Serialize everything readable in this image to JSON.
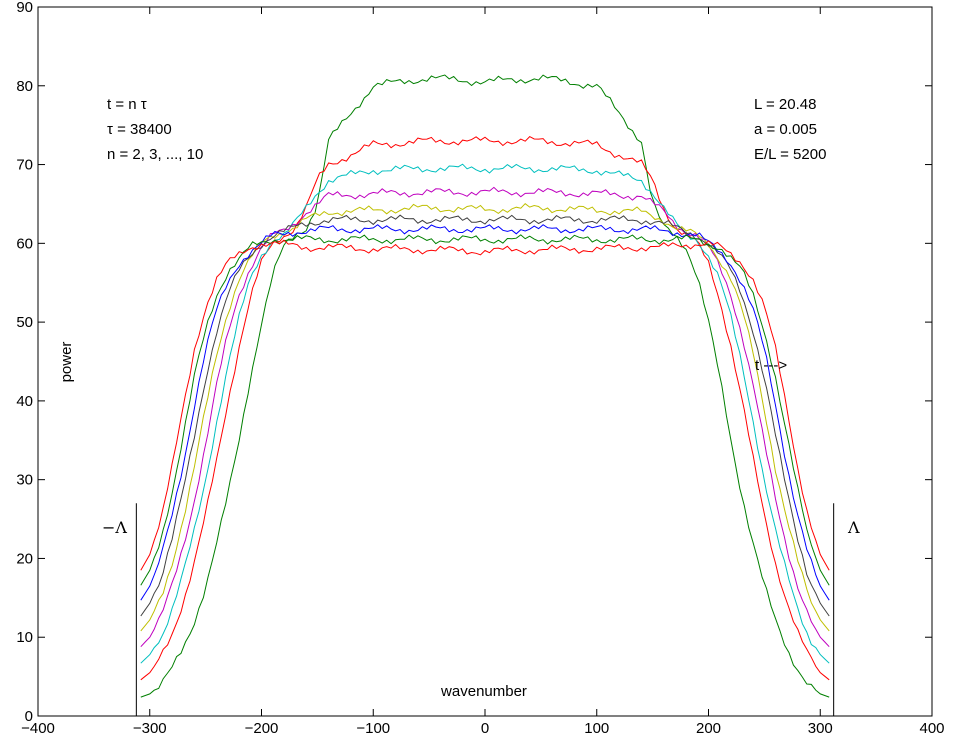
{
  "chart_data": {
    "type": "line",
    "title": "",
    "xlabel": "wavenumber",
    "ylabel": "power",
    "xlim": [
      -400,
      400
    ],
    "ylim": [
      0,
      90
    ],
    "grid": false,
    "x_ticks": [
      -400,
      -300,
      -200,
      -100,
      0,
      100,
      200,
      300,
      400
    ],
    "x_tick_labels": [
      "−400",
      "−300",
      "−200",
      "−100",
      "0",
      "100",
      "200",
      "300",
      "400"
    ],
    "y_ticks": [
      0,
      10,
      20,
      30,
      40,
      50,
      60,
      70,
      80,
      90
    ],
    "y_tick_labels": [
      "0",
      "10",
      "20",
      "30",
      "40",
      "50",
      "60",
      "70",
      "80",
      "90"
    ],
    "annotations_left": [
      "t = n τ",
      "τ = 38400",
      "n = 2, 3, ..., 10"
    ],
    "annotations_right": [
      "L = 20.48",
      "a = 0.005",
      "E/L = 5200"
    ],
    "arrow_text": "t --->",
    "boundary_lines": {
      "left_x": -312,
      "right_x": 312,
      "top_y": 27,
      "left_label": "−Λ",
      "right_label": "Λ"
    },
    "x_profile": [
      -308,
      -300,
      -290,
      -280,
      -270,
      -260,
      -250,
      -240,
      -230,
      -220,
      -210,
      -200,
      -190,
      -180,
      -170,
      -160,
      -150,
      -140,
      -100,
      -50,
      0,
      50,
      100,
      140,
      150,
      160,
      170,
      180,
      190,
      200,
      210,
      220,
      230,
      240,
      250,
      260,
      270,
      280,
      290,
      300,
      308
    ],
    "series": [
      {
        "color": "#007f00",
        "values": [
          2.4,
          2.8,
          4.0,
          6.0,
          8.5,
          12.0,
          16.5,
          22.0,
          28.0,
          35.0,
          43.0,
          50.0,
          56.0,
          59.5,
          61.0,
          62.0,
          65.0,
          73.0,
          80.0,
          81.0,
          80.5,
          81.0,
          80.0,
          73.0,
          65.0,
          62.0,
          61.0,
          59.5,
          56.0,
          50.0,
          43.0,
          35.0,
          28.0,
          22.0,
          16.5,
          12.0,
          8.5,
          6.0,
          4.0,
          2.8,
          2.4
        ]
      },
      {
        "color": "#ff0000",
        "values": [
          4.6,
          5.5,
          7.5,
          10.5,
          14.5,
          19.5,
          25.5,
          32.5,
          40.0,
          47.0,
          53.0,
          57.5,
          60.0,
          61.0,
          62.0,
          64.5,
          68.0,
          70.0,
          72.5,
          73.0,
          73.0,
          73.0,
          72.5,
          70.0,
          68.0,
          64.5,
          62.0,
          61.0,
          60.0,
          57.5,
          53.0,
          47.0,
          40.0,
          32.5,
          25.5,
          19.5,
          14.5,
          10.5,
          7.5,
          5.5,
          4.6
        ]
      },
      {
        "color": "#00bfbf",
        "values": [
          6.7,
          7.8,
          10.0,
          13.5,
          18.0,
          23.5,
          30.0,
          37.5,
          44.5,
          50.5,
          55.5,
          58.5,
          60.5,
          61.0,
          62.5,
          64.5,
          66.5,
          68.0,
          69.3,
          69.5,
          69.5,
          69.5,
          69.3,
          68.0,
          66.5,
          64.5,
          62.5,
          61.0,
          60.5,
          58.5,
          55.5,
          50.5,
          44.5,
          37.5,
          30.0,
          23.5,
          18.0,
          13.5,
          10.0,
          7.8,
          6.7
        ]
      },
      {
        "color": "#bf00bf",
        "values": [
          8.8,
          10.0,
          12.5,
          16.5,
          21.5,
          27.5,
          34.5,
          42.0,
          48.5,
          53.5,
          57.0,
          59.5,
          61.0,
          61.5,
          62.5,
          64.0,
          65.0,
          66.0,
          66.3,
          66.5,
          66.5,
          66.5,
          66.3,
          66.0,
          65.0,
          64.0,
          62.5,
          61.5,
          61.0,
          59.5,
          57.0,
          53.5,
          48.5,
          42.0,
          34.5,
          27.5,
          21.5,
          16.5,
          12.5,
          10.0,
          8.8
        ]
      },
      {
        "color": "#bfbf00",
        "values": [
          10.8,
          12.2,
          15.0,
          19.5,
          25.0,
          31.5,
          39.0,
          46.0,
          51.5,
          55.5,
          58.0,
          60.0,
          61.0,
          61.5,
          62.0,
          63.0,
          63.5,
          64.0,
          64.2,
          64.5,
          64.3,
          64.5,
          64.2,
          64.0,
          63.5,
          63.0,
          62.0,
          61.5,
          61.0,
          60.0,
          58.0,
          55.5,
          51.5,
          46.0,
          39.0,
          31.5,
          25.0,
          19.5,
          15.0,
          12.2,
          10.8
        ]
      },
      {
        "color": "#404040",
        "values": [
          12.7,
          14.3,
          17.5,
          22.5,
          28.5,
          35.5,
          43.0,
          49.0,
          53.5,
          56.5,
          58.5,
          60.0,
          61.0,
          61.5,
          62.0,
          62.5,
          62.8,
          63.0,
          63.0,
          63.0,
          63.0,
          63.0,
          63.0,
          63.0,
          62.8,
          62.5,
          62.0,
          61.5,
          61.0,
          60.0,
          58.5,
          56.5,
          53.5,
          49.0,
          43.0,
          35.5,
          28.5,
          22.5,
          17.5,
          14.3,
          12.7
        ]
      },
      {
        "color": "#0000ff",
        "values": [
          14.7,
          16.5,
          20.0,
          25.5,
          32.0,
          39.5,
          46.5,
          51.5,
          55.0,
          57.5,
          59.0,
          60.0,
          61.0,
          61.2,
          61.5,
          61.6,
          61.7,
          61.8,
          61.8,
          61.8,
          61.8,
          61.8,
          61.8,
          61.8,
          61.7,
          61.6,
          61.5,
          61.2,
          61.0,
          60.0,
          59.0,
          57.5,
          55.0,
          51.5,
          46.5,
          39.5,
          32.0,
          25.5,
          20.0,
          16.5,
          14.7
        ]
      },
      {
        "color": "#008000",
        "values": [
          16.6,
          18.5,
          22.5,
          28.5,
          35.5,
          43.0,
          49.0,
          53.5,
          56.5,
          58.0,
          59.5,
          60.0,
          60.5,
          60.5,
          60.5,
          60.5,
          60.5,
          60.5,
          60.5,
          60.5,
          60.5,
          60.5,
          60.5,
          60.5,
          60.5,
          60.5,
          60.5,
          60.5,
          60.5,
          60.0,
          59.5,
          58.0,
          56.5,
          53.5,
          49.0,
          43.0,
          35.5,
          28.5,
          22.5,
          18.5,
          16.6
        ]
      },
      {
        "color": "#ff0000",
        "values": [
          18.5,
          20.5,
          25.0,
          31.5,
          39.0,
          46.5,
          52.0,
          55.5,
          57.5,
          58.5,
          59.5,
          60.0,
          60.0,
          59.8,
          59.7,
          59.5,
          59.5,
          59.5,
          59.3,
          59.2,
          59.0,
          59.2,
          59.3,
          59.5,
          59.5,
          59.5,
          59.7,
          59.8,
          60.0,
          60.0,
          59.5,
          58.5,
          57.5,
          55.5,
          52.0,
          46.5,
          39.0,
          31.5,
          25.0,
          20.5,
          18.5
        ]
      }
    ]
  }
}
